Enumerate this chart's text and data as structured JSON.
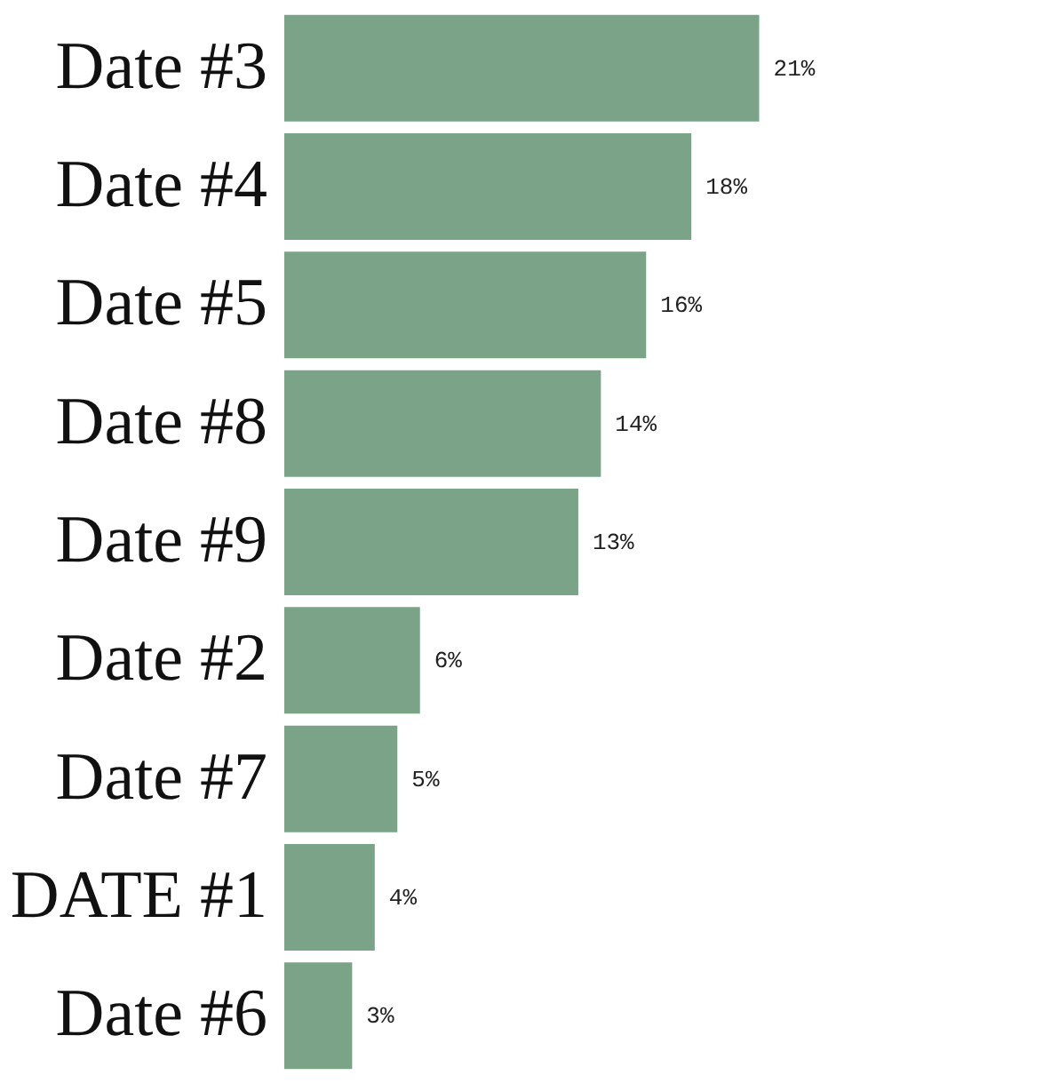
{
  "chart_data": {
    "type": "bar",
    "orientation": "horizontal",
    "categories": [
      "Date #3",
      "Date #4",
      "Date #5",
      "Date #8",
      "Date #9",
      "Date #2",
      "Date #7",
      "DATE #1",
      "Date #6"
    ],
    "values": [
      21,
      18,
      16,
      14,
      13,
      6,
      5,
      4,
      3
    ],
    "value_labels": [
      "21%",
      "18%",
      "16%",
      "14%",
      "13%",
      "6%",
      "5%",
      "4%",
      "3%"
    ],
    "color": "#7aa387"
  }
}
